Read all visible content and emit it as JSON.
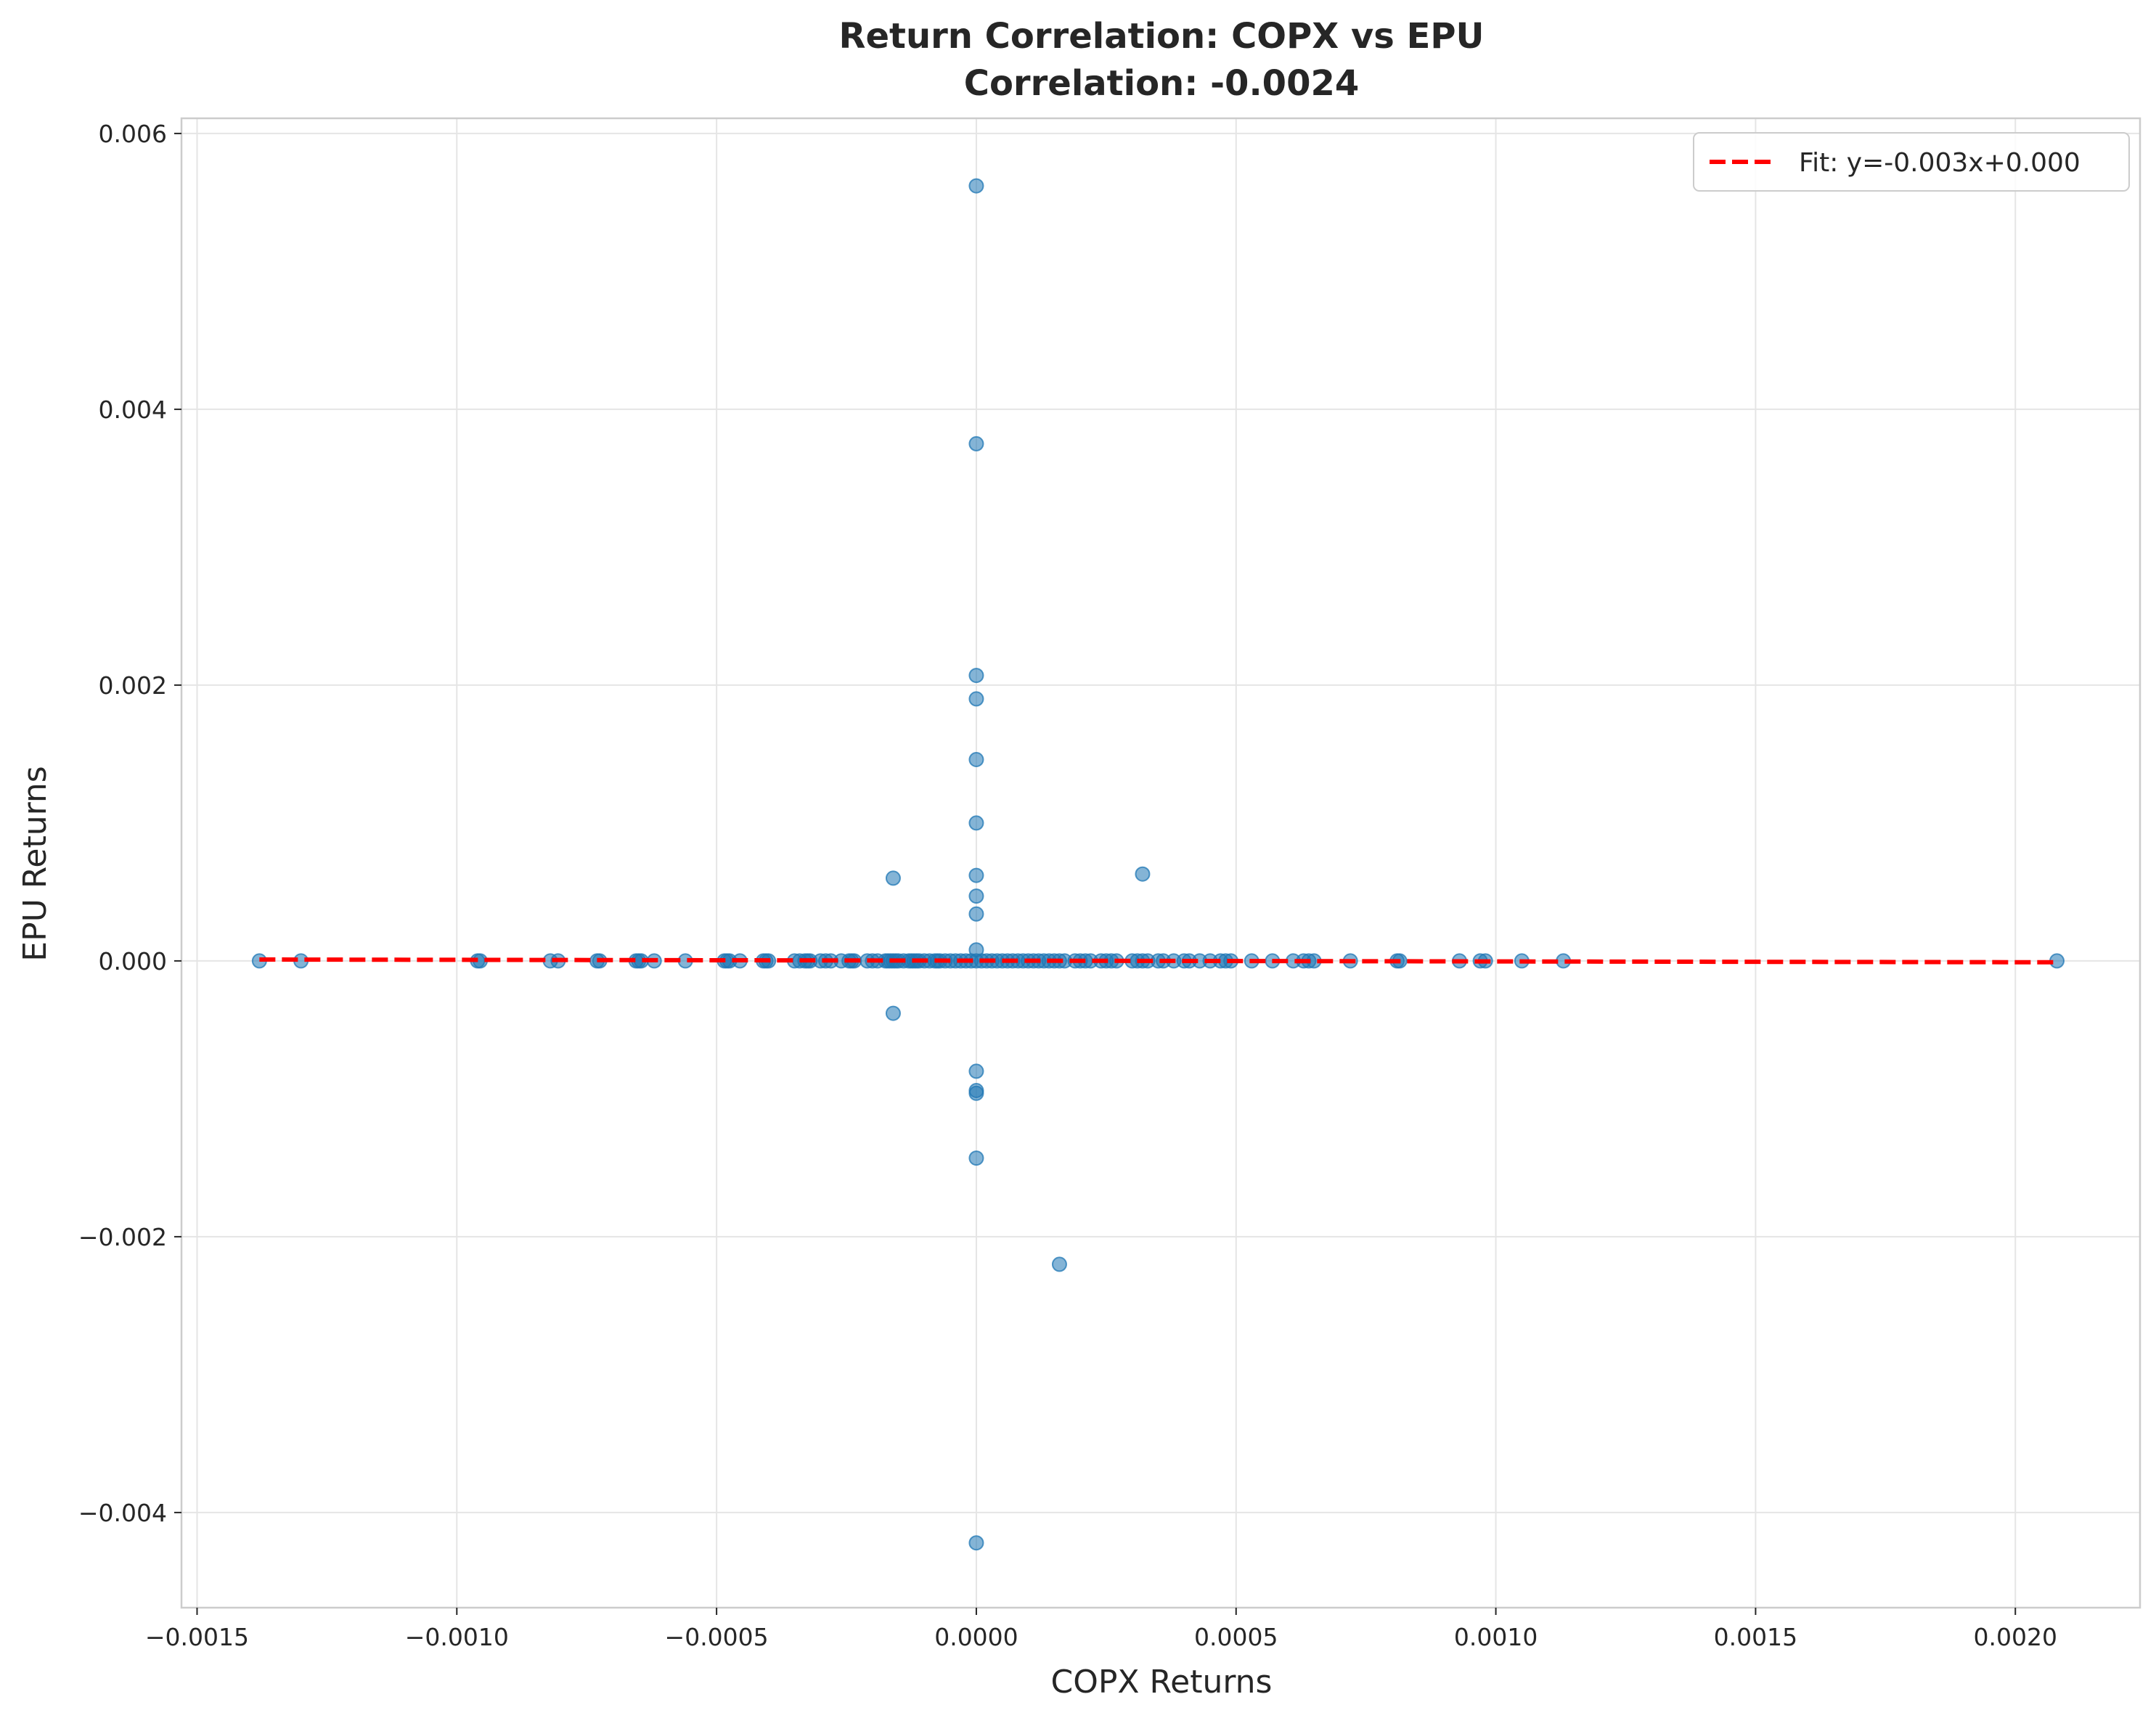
{
  "chart_data": {
    "type": "scatter",
    "title": "Return Correlation: COPX vs EPU",
    "subtitle": "Correlation: -0.0024",
    "xlabel": "COPX Returns",
    "ylabel": "EPU Returns",
    "xlim": [
      -0.00153,
      0.00224
    ],
    "ylim": [
      -0.00469,
      0.00611
    ],
    "x_ticks": [
      -0.0015,
      -0.001,
      -0.0005,
      0.0,
      0.0005,
      0.001,
      0.0015,
      0.002
    ],
    "x_tick_labels": [
      "−0.0015",
      "−0.0010",
      "−0.0005",
      "0.0000",
      "0.0005",
      "0.0010",
      "0.0015",
      "0.0020"
    ],
    "y_ticks": [
      -0.004,
      -0.002,
      0.0,
      0.002,
      0.004,
      0.006
    ],
    "y_tick_labels": [
      "−0.004",
      "−0.002",
      "0.000",
      "0.002",
      "0.004",
      "0.006"
    ],
    "grid": true,
    "legend_placement": "top-right",
    "colors": {
      "points": "#1f77b4",
      "fit_line": "#ff0000",
      "grid": "#e5e5e5",
      "frame": "#cccccc"
    },
    "series": [
      {
        "kind": "scatter",
        "x": [
          -0.00138,
          -0.0013,
          -0.00096,
          -0.000955,
          -0.00082,
          -0.000805,
          -0.00073,
          -0.000725,
          -0.000655,
          -0.00065,
          -0.000645,
          -0.00062,
          -0.00056,
          -0.000485,
          -0.00048,
          -0.000475,
          -0.000455,
          -0.00041,
          -0.000405,
          -0.0004,
          -0.00035,
          -0.00034,
          -0.00033,
          -0.000325,
          -0.00032,
          -0.0003,
          -0.00029,
          -0.00028,
          -0.00026,
          -0.000245,
          -0.00024,
          -0.000235,
          -0.00021,
          -0.0002,
          -0.00019,
          -0.000175,
          -0.00017,
          -0.000165,
          -0.00016,
          -0.000155,
          -0.00015,
          -0.00014,
          -0.00013,
          -0.000125,
          -0.00012,
          -0.000115,
          -0.00011,
          -0.0001,
          -9e-05,
          -8e-05,
          -7.5e-05,
          -7e-05,
          -6e-05,
          -5e-05,
          -4e-05,
          -3e-05,
          -2e-05,
          -1e-05,
          0.0,
          1e-05,
          2e-05,
          3e-05,
          4e-05,
          5e-05,
          6e-05,
          7e-05,
          8e-05,
          9e-05,
          0.0001,
          0.00011,
          0.00012,
          0.00013,
          0.00014,
          0.00015,
          0.00016,
          0.00017,
          0.00019,
          0.0002,
          0.00021,
          0.00022,
          0.00024,
          0.00025,
          0.00026,
          0.00027,
          0.0003,
          0.00031,
          0.00032,
          0.00033,
          0.00035,
          0.00036,
          0.00038,
          0.0004,
          0.00041,
          0.00043,
          0.00045,
          0.00047,
          0.00048,
          0.00049,
          0.00053,
          0.00057,
          0.00061,
          0.00063,
          0.00064,
          0.00065,
          0.00072,
          0.00081,
          0.000815,
          0.00093,
          0.00097,
          0.00098,
          0.00105,
          0.00113,
          0.00208,
          0.0,
          0.0,
          0.0,
          0.0,
          0.0,
          0.0,
          0.0,
          0.0,
          0.0,
          0.0,
          0.0,
          0.0,
          0.0,
          0.0,
          0.0,
          -0.00016,
          -0.00016,
          0.00032,
          0.00016
        ],
        "y": [
          0,
          0,
          0,
          0,
          0,
          0,
          0,
          0,
          0,
          0,
          0,
          0,
          0,
          0,
          0,
          0,
          0,
          0,
          0,
          0,
          0,
          0,
          0,
          0,
          0,
          0,
          0,
          0,
          0,
          0,
          0,
          0,
          0,
          0,
          0,
          0,
          0,
          0,
          0,
          0,
          0,
          0,
          0,
          0,
          0,
          0,
          0,
          0,
          0,
          0,
          0,
          0,
          0,
          0,
          0,
          0,
          0,
          0,
          0,
          0,
          0,
          0,
          0,
          0,
          0,
          0,
          0,
          0,
          0,
          0,
          0,
          0,
          0,
          0,
          0,
          0,
          0,
          0,
          0,
          0,
          0,
          0,
          0,
          0,
          0,
          0,
          0,
          0,
          0,
          0,
          0,
          0,
          0,
          0,
          0,
          0,
          0,
          0,
          0,
          0,
          0,
          0,
          0,
          0,
          0,
          0,
          0,
          0,
          0,
          0,
          0,
          0,
          0,
          0.00562,
          0.00375,
          0.00207,
          0.0019,
          0.00146,
          0.001,
          0.00062,
          0.00047,
          0.00034,
          8e-05,
          -0.0008,
          -0.00094,
          -0.00096,
          -0.00143,
          -0.00422,
          0.0006,
          -0.00038,
          0.00063,
          -0.0022
        ]
      },
      {
        "kind": "line",
        "name": "Fit: y=-0.003x+0.000",
        "style": "dashed",
        "x": [
          -0.00138,
          0.00208
        ],
        "y": [
          1e-05,
          -1e-05
        ]
      }
    ]
  }
}
